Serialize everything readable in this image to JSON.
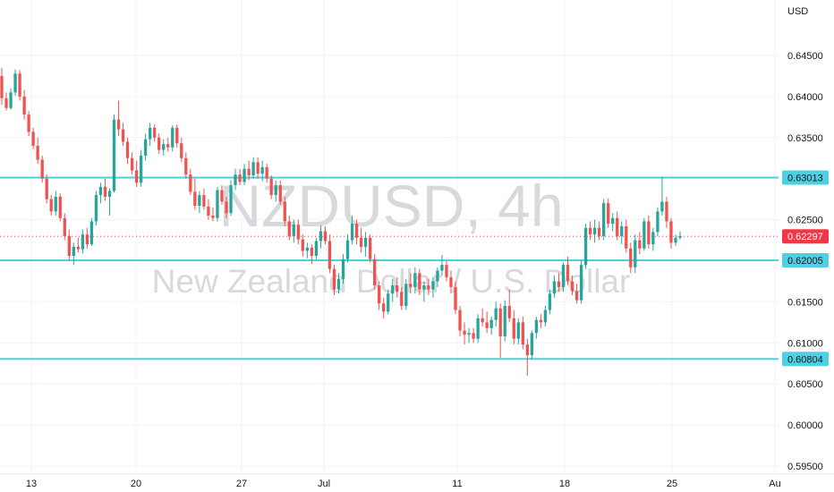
{
  "chart_data": {
    "type": "candlestick",
    "watermark": {
      "symbol": "NZDUSD, 4h",
      "description": "New Zealand Dollar / U.S. Dollar"
    },
    "currency": "USD",
    "ylim": [
      0.595,
      0.65
    ],
    "y_ticks": [
      "0.64500",
      "0.64000",
      "0.63500",
      "0.63000",
      "0.62500",
      "0.62000",
      "0.61500",
      "0.61000",
      "0.60500",
      "0.60000",
      "0.59500"
    ],
    "x_ticks": [
      "13",
      "20",
      "27",
      "Jul",
      "11",
      "18",
      "25",
      "Au"
    ],
    "horizontal_levels": [
      {
        "value": 0.63013,
        "label": "0.63013"
      },
      {
        "value": 0.62005,
        "label": "0.62005"
      },
      {
        "value": 0.60804,
        "label": "0.60804"
      }
    ],
    "last_price": {
      "value": 0.62297,
      "label": "0.62297"
    },
    "colors": {
      "up": "#26a69a",
      "down": "#ef5350",
      "level": "#4dd0e1",
      "last": "#f23645",
      "grid": "#f0f3fa"
    },
    "candles": [
      [
        0.6425,
        0.6435,
        0.639,
        0.6398
      ],
      [
        0.6398,
        0.6405,
        0.6383,
        0.6386
      ],
      [
        0.6386,
        0.641,
        0.6384,
        0.6405
      ],
      [
        0.6405,
        0.6433,
        0.6401,
        0.6428
      ],
      [
        0.6428,
        0.6432,
        0.6395,
        0.64
      ],
      [
        0.64,
        0.6408,
        0.6372,
        0.6378
      ],
      [
        0.6378,
        0.6382,
        0.6352,
        0.6357
      ],
      [
        0.6357,
        0.6362,
        0.6336,
        0.634
      ],
      [
        0.634,
        0.635,
        0.6318,
        0.6323
      ],
      [
        0.6323,
        0.6328,
        0.6295,
        0.63
      ],
      [
        0.63,
        0.6305,
        0.627,
        0.6275
      ],
      [
        0.6275,
        0.628,
        0.6255,
        0.626
      ],
      [
        0.626,
        0.6285,
        0.6255,
        0.6278
      ],
      [
        0.6278,
        0.6282,
        0.6248,
        0.6252
      ],
      [
        0.6252,
        0.6258,
        0.6225,
        0.623
      ],
      [
        0.623,
        0.6238,
        0.62,
        0.6206
      ],
      [
        0.6206,
        0.6222,
        0.6195,
        0.6217
      ],
      [
        0.6217,
        0.6228,
        0.621,
        0.6214
      ],
      [
        0.6214,
        0.6238,
        0.6209,
        0.6232
      ],
      [
        0.6232,
        0.624,
        0.6215,
        0.622
      ],
      [
        0.622,
        0.6252,
        0.6218,
        0.6248
      ],
      [
        0.6248,
        0.6285,
        0.6243,
        0.628
      ],
      [
        0.628,
        0.6295,
        0.627,
        0.629
      ],
      [
        0.629,
        0.63,
        0.6273,
        0.6278
      ],
      [
        0.6278,
        0.6288,
        0.6255,
        0.6285
      ],
      [
        0.6285,
        0.6378,
        0.6283,
        0.6372
      ],
      [
        0.6372,
        0.6395,
        0.6352,
        0.636
      ],
      [
        0.636,
        0.6368,
        0.634,
        0.6345
      ],
      [
        0.6345,
        0.635,
        0.6318,
        0.6325
      ],
      [
        0.6325,
        0.6332,
        0.6305,
        0.631
      ],
      [
        0.631,
        0.6322,
        0.629,
        0.6295
      ],
      [
        0.6295,
        0.6335,
        0.629,
        0.6328
      ],
      [
        0.6328,
        0.6355,
        0.6322,
        0.6348
      ],
      [
        0.6348,
        0.6368,
        0.634,
        0.6362
      ],
      [
        0.6362,
        0.6366,
        0.6345,
        0.635
      ],
      [
        0.635,
        0.6355,
        0.633,
        0.6335
      ],
      [
        0.6335,
        0.6348,
        0.6328,
        0.6342
      ],
      [
        0.6342,
        0.635,
        0.6333,
        0.6338
      ],
      [
        0.6338,
        0.6365,
        0.6333,
        0.6362
      ],
      [
        0.6362,
        0.6366,
        0.6338,
        0.6343
      ],
      [
        0.6343,
        0.635,
        0.632,
        0.6325
      ],
      [
        0.6325,
        0.6332,
        0.63,
        0.6305
      ],
      [
        0.6305,
        0.6312,
        0.628,
        0.6284
      ],
      [
        0.6284,
        0.63,
        0.6262,
        0.6267
      ],
      [
        0.6267,
        0.6285,
        0.6258,
        0.628
      ],
      [
        0.628,
        0.6288,
        0.6262,
        0.6266
      ],
      [
        0.6266,
        0.6275,
        0.625,
        0.6255
      ],
      [
        0.6255,
        0.6265,
        0.6248,
        0.6252
      ],
      [
        0.6252,
        0.629,
        0.6248,
        0.6286
      ],
      [
        0.6286,
        0.6292,
        0.6268,
        0.6272
      ],
      [
        0.6272,
        0.6278,
        0.6252,
        0.6258
      ],
      [
        0.6258,
        0.6298,
        0.6255,
        0.6292
      ],
      [
        0.6292,
        0.6312,
        0.6286,
        0.6305
      ],
      [
        0.6305,
        0.6312,
        0.6292,
        0.6296
      ],
      [
        0.6296,
        0.6318,
        0.6292,
        0.6312
      ],
      [
        0.6312,
        0.6322,
        0.6298,
        0.6304
      ],
      [
        0.6304,
        0.6326,
        0.63,
        0.632
      ],
      [
        0.632,
        0.6326,
        0.63,
        0.6306
      ],
      [
        0.6306,
        0.6322,
        0.6297,
        0.6314
      ],
      [
        0.6314,
        0.6318,
        0.6295,
        0.63
      ],
      [
        0.63,
        0.6304,
        0.6275,
        0.628
      ],
      [
        0.628,
        0.6298,
        0.6272,
        0.6292
      ],
      [
        0.6292,
        0.6298,
        0.6268,
        0.6272
      ],
      [
        0.6272,
        0.6278,
        0.6242,
        0.6248
      ],
      [
        0.6248,
        0.6255,
        0.6225,
        0.623
      ],
      [
        0.623,
        0.625,
        0.6222,
        0.6244
      ],
      [
        0.6244,
        0.625,
        0.622,
        0.6226
      ],
      [
        0.6226,
        0.6232,
        0.6205,
        0.6212
      ],
      [
        0.6212,
        0.6222,
        0.6203,
        0.6216
      ],
      [
        0.6216,
        0.622,
        0.6196,
        0.6206
      ],
      [
        0.6206,
        0.6228,
        0.6202,
        0.6224
      ],
      [
        0.6224,
        0.6243,
        0.6215,
        0.6236
      ],
      [
        0.6236,
        0.6242,
        0.622,
        0.6224
      ],
      [
        0.6224,
        0.6232,
        0.6185,
        0.619
      ],
      [
        0.619,
        0.6195,
        0.6158,
        0.6165
      ],
      [
        0.6165,
        0.6185,
        0.616,
        0.6178
      ],
      [
        0.6178,
        0.6208,
        0.6172,
        0.6202
      ],
      [
        0.6202,
        0.6232,
        0.6198,
        0.6225
      ],
      [
        0.6225,
        0.6255,
        0.622,
        0.6245
      ],
      [
        0.6245,
        0.625,
        0.622,
        0.6228
      ],
      [
        0.6228,
        0.624,
        0.621,
        0.6217
      ],
      [
        0.6217,
        0.6235,
        0.6205,
        0.6228
      ],
      [
        0.6228,
        0.6232,
        0.6198,
        0.6202
      ],
      [
        0.6202,
        0.6208,
        0.6165,
        0.617
      ],
      [
        0.617,
        0.6175,
        0.614,
        0.6148
      ],
      [
        0.6148,
        0.6155,
        0.613,
        0.6138
      ],
      [
        0.6138,
        0.6165,
        0.6135,
        0.616
      ],
      [
        0.616,
        0.6178,
        0.615,
        0.617
      ],
      [
        0.617,
        0.618,
        0.6155,
        0.6162
      ],
      [
        0.6162,
        0.6168,
        0.614,
        0.6145
      ],
      [
        0.6145,
        0.6178,
        0.614,
        0.6172
      ],
      [
        0.6172,
        0.6185,
        0.616,
        0.6168
      ],
      [
        0.6168,
        0.6192,
        0.616,
        0.6185
      ],
      [
        0.6185,
        0.619,
        0.6158,
        0.6165
      ],
      [
        0.6165,
        0.6175,
        0.615,
        0.617
      ],
      [
        0.617,
        0.6178,
        0.6158,
        0.6165
      ],
      [
        0.6165,
        0.618,
        0.6155,
        0.6175
      ],
      [
        0.6175,
        0.6192,
        0.6168,
        0.6188
      ],
      [
        0.6188,
        0.6207,
        0.6182,
        0.6195
      ],
      [
        0.6195,
        0.62,
        0.6175,
        0.618
      ],
      [
        0.618,
        0.6188,
        0.616,
        0.6168
      ],
      [
        0.6168,
        0.6175,
        0.6135,
        0.614
      ],
      [
        0.614,
        0.6145,
        0.6108,
        0.6115
      ],
      [
        0.6115,
        0.6125,
        0.6098,
        0.611
      ],
      [
        0.611,
        0.6118,
        0.61,
        0.6112
      ],
      [
        0.6112,
        0.6118,
        0.61,
        0.6105
      ],
      [
        0.6105,
        0.6135,
        0.61,
        0.613
      ],
      [
        0.613,
        0.6142,
        0.612,
        0.6125
      ],
      [
        0.6125,
        0.6138,
        0.6112,
        0.6118
      ],
      [
        0.6118,
        0.6132,
        0.611,
        0.6128
      ],
      [
        0.6128,
        0.615,
        0.612,
        0.6142
      ],
      [
        0.6142,
        0.6148,
        0.6082,
        0.6108
      ],
      [
        0.6108,
        0.6152,
        0.6102,
        0.6145
      ],
      [
        0.6145,
        0.6165,
        0.6125,
        0.613
      ],
      [
        0.613,
        0.614,
        0.6098,
        0.6105
      ],
      [
        0.6105,
        0.613,
        0.6098,
        0.6125
      ],
      [
        0.6125,
        0.6132,
        0.6092,
        0.6098
      ],
      [
        0.6098,
        0.6105,
        0.606,
        0.6085
      ],
      [
        0.6085,
        0.6115,
        0.608,
        0.6112
      ],
      [
        0.6112,
        0.6132,
        0.6105,
        0.6128
      ],
      [
        0.6128,
        0.6135,
        0.6118,
        0.6125
      ],
      [
        0.6125,
        0.6145,
        0.612,
        0.614
      ],
      [
        0.614,
        0.6165,
        0.6135,
        0.616
      ],
      [
        0.616,
        0.6182,
        0.6155,
        0.6175
      ],
      [
        0.6175,
        0.6185,
        0.6162,
        0.6168
      ],
      [
        0.6168,
        0.6198,
        0.6162,
        0.6195
      ],
      [
        0.6195,
        0.6205,
        0.617,
        0.6175
      ],
      [
        0.6175,
        0.6182,
        0.6158,
        0.6163
      ],
      [
        0.6163,
        0.6172,
        0.6148,
        0.6152
      ],
      [
        0.6152,
        0.62,
        0.6148,
        0.6195
      ],
      [
        0.6195,
        0.6245,
        0.619,
        0.624
      ],
      [
        0.624,
        0.6248,
        0.6225,
        0.6232
      ],
      [
        0.6232,
        0.625,
        0.6222,
        0.624
      ],
      [
        0.624,
        0.6248,
        0.6225,
        0.623
      ],
      [
        0.623,
        0.6275,
        0.6225,
        0.627
      ],
      [
        0.627,
        0.6276,
        0.624,
        0.6245
      ],
      [
        0.6245,
        0.6258,
        0.6236,
        0.6252
      ],
      [
        0.6252,
        0.626,
        0.6225,
        0.623
      ],
      [
        0.623,
        0.6248,
        0.622,
        0.6242
      ],
      [
        0.6242,
        0.625,
        0.621,
        0.6215
      ],
      [
        0.6215,
        0.6222,
        0.6185,
        0.6192
      ],
      [
        0.6192,
        0.6232,
        0.6185,
        0.6225
      ],
      [
        0.6225,
        0.6235,
        0.6208,
        0.6215
      ],
      [
        0.6215,
        0.6252,
        0.6212,
        0.6248
      ],
      [
        0.6248,
        0.6255,
        0.6215,
        0.622
      ],
      [
        0.622,
        0.624,
        0.6212,
        0.6235
      ],
      [
        0.6235,
        0.6265,
        0.623,
        0.626
      ],
      [
        0.626,
        0.6302,
        0.6255,
        0.6272
      ],
      [
        0.6272,
        0.6278,
        0.624,
        0.6248
      ],
      [
        0.6248,
        0.6252,
        0.6215,
        0.6222
      ],
      [
        0.6222,
        0.6232,
        0.6218,
        0.6228
      ],
      [
        0.6228,
        0.6236,
        0.6226,
        0.623
      ]
    ]
  }
}
